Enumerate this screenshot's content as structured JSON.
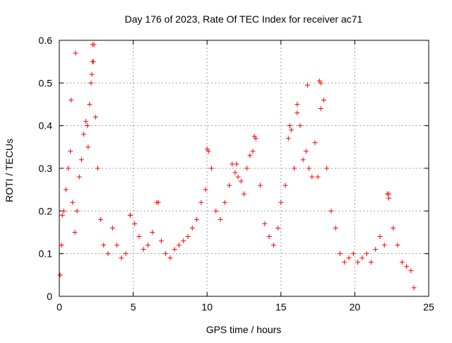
{
  "chart_data": {
    "type": "scatter",
    "title": "Day 176 of 2023, Rate Of TEC Index for receiver ac71",
    "xlabel": "GPS time / hours",
    "ylabel": "ROTI / TECUs",
    "xlim": [
      0,
      25
    ],
    "ylim": [
      0,
      0.6
    ],
    "xticks": [
      0,
      5,
      10,
      15,
      20,
      25
    ],
    "yticks": [
      0,
      0.1,
      0.2,
      0.3,
      0.4,
      0.5,
      0.6
    ],
    "grid": true,
    "legend": "none",
    "marker": "plus",
    "color": "#ff0000",
    "series": [
      {
        "x": [
          0.05,
          0.15,
          0.3,
          0.45,
          0.6,
          0.75,
          0.9,
          1.05,
          1.2,
          1.35,
          1.5,
          1.65,
          1.8,
          1.95,
          2.05,
          2.15,
          2.25,
          2.35,
          2.45,
          2.6,
          2.8,
          3.0,
          3.3,
          3.6,
          3.9,
          4.2,
          4.5,
          4.8,
          5.1,
          5.4,
          5.7,
          6.0,
          6.3,
          6.6,
          6.9,
          7.2,
          7.5,
          7.8,
          8.1,
          8.4,
          8.7,
          9.0,
          9.3,
          9.6,
          9.9,
          10.1,
          10.3,
          10.6,
          10.9,
          11.2,
          11.5,
          11.7,
          11.9,
          12.1,
          12.3,
          12.5,
          12.7,
          12.9,
          13.1,
          13.3,
          13.6,
          13.9,
          14.2,
          14.5,
          14.8,
          15.0,
          15.3,
          15.5,
          15.7,
          15.9,
          16.1,
          16.3,
          16.5,
          16.7,
          16.9,
          17.1,
          17.3,
          17.5,
          17.7,
          17.9,
          18.1,
          18.4,
          18.7,
          19.0,
          19.3,
          19.6,
          19.9,
          20.2,
          20.5,
          20.8,
          21.1,
          21.4,
          21.7,
          22.0,
          22.3,
          22.6,
          22.9,
          23.2,
          23.5,
          23.8,
          24.0,
          1.1,
          0.8,
          2.25,
          2.3,
          2.2,
          17.6,
          17.7,
          16.8,
          15.6,
          16.1,
          13.2,
          10.0,
          12.0,
          22.2,
          22.3,
          6.7,
          4.8,
          0.2,
          1.9
        ],
        "y": [
          0.05,
          0.12,
          0.2,
          0.25,
          0.3,
          0.34,
          0.22,
          0.15,
          0.2,
          0.28,
          0.32,
          0.38,
          0.41,
          0.35,
          0.45,
          0.5,
          0.55,
          0.59,
          0.42,
          0.3,
          0.18,
          0.12,
          0.1,
          0.16,
          0.12,
          0.09,
          0.1,
          0.19,
          0.17,
          0.14,
          0.11,
          0.12,
          0.15,
          0.22,
          0.13,
          0.1,
          0.09,
          0.11,
          0.12,
          0.13,
          0.14,
          0.16,
          0.18,
          0.22,
          0.25,
          0.34,
          0.3,
          0.2,
          0.18,
          0.22,
          0.26,
          0.31,
          0.29,
          0.28,
          0.27,
          0.24,
          0.3,
          0.33,
          0.34,
          0.37,
          0.26,
          0.17,
          0.14,
          0.12,
          0.16,
          0.22,
          0.26,
          0.37,
          0.39,
          0.3,
          0.45,
          0.4,
          0.32,
          0.34,
          0.3,
          0.28,
          0.36,
          0.28,
          0.5,
          0.46,
          0.3,
          0.2,
          0.16,
          0.1,
          0.08,
          0.09,
          0.1,
          0.08,
          0.09,
          0.1,
          0.08,
          0.11,
          0.14,
          0.12,
          0.24,
          0.16,
          0.12,
          0.08,
          0.07,
          0.06,
          0.02,
          0.57,
          0.46,
          0.59,
          0.55,
          0.52,
          0.505,
          0.44,
          0.495,
          0.4,
          0.43,
          0.375,
          0.345,
          0.31,
          0.24,
          0.23,
          0.22,
          0.19,
          0.19,
          0.4
        ]
      }
    ]
  }
}
